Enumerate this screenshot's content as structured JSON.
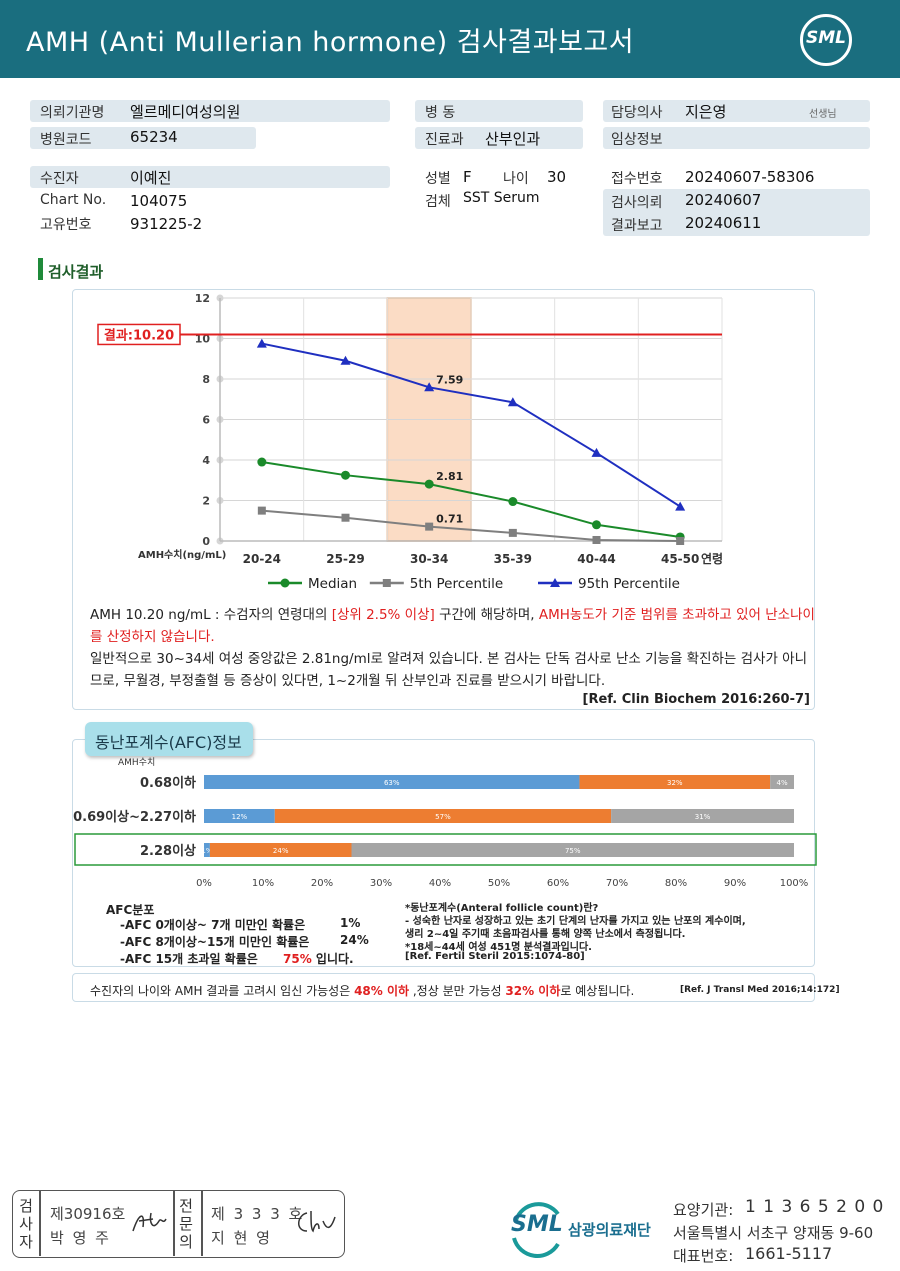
{
  "header": {
    "title": "AMH (Anti Mullerian hormone) 검사결과보고서",
    "logo": "SML"
  },
  "info": {
    "request_org_label": "의뢰기관명",
    "request_org": "엘르메디여성의원",
    "hospital_code_label": "병원코드",
    "hospital_code": "65234",
    "patient_label": "수진자",
    "patient": "이예진",
    "chart_label": "Chart No.",
    "chart_no": "104075",
    "unique_label": "고유번호",
    "unique_no": "931225-2",
    "ward_label": "병 동",
    "ward": "",
    "dept_label": "진료과",
    "dept": "산부인과",
    "sex_label": "성별",
    "sex": "F",
    "age_label": "나이",
    "age": "30",
    "specimen_label": "검체",
    "specimen": "SST Serum",
    "doctor_label": "담당의사",
    "doctor": "지은영",
    "doctor_suffix": "선생님",
    "clinical_label": "임상정보",
    "clinical": "",
    "receipt_label": "접수번호",
    "receipt_no": "20240607-58306",
    "request_date_label": "검사의뢰",
    "request_date": "20240607",
    "report_date_label": "결과보고",
    "report_date": "20240611"
  },
  "section_title": "검사결과",
  "chart_data": {
    "type": "line",
    "categories": [
      "20-24",
      "25-29",
      "30-34",
      "35-39",
      "40-44",
      "45-50"
    ],
    "xlabel": "연령",
    "ylabel": "AMH수치(ng/mL)",
    "ylim": [
      0,
      12
    ],
    "yticks": [
      "0",
      "2",
      "4",
      "6",
      "8",
      "10",
      "12"
    ],
    "grid": true,
    "legend_position": "bottom",
    "highlight_category": "30-34",
    "result_line": {
      "value": 10.2,
      "label": "결과:10.20",
      "color": "#e02020"
    },
    "series": [
      {
        "name": "Median",
        "values": [
          3.9,
          3.25,
          2.81,
          1.95,
          0.8,
          0.2
        ],
        "color": "#1a8a2a",
        "marker": "circle"
      },
      {
        "name": "5th Percentile",
        "values": [
          1.5,
          1.15,
          0.71,
          0.4,
          0.05,
          0.0
        ],
        "color": "#7f7f7f",
        "marker": "square"
      },
      {
        "name": "95th Percentile",
        "values": [
          9.75,
          8.9,
          7.59,
          6.85,
          4.35,
          1.7
        ],
        "color": "#1f2fc0",
        "marker": "triangle"
      }
    ],
    "data_labels": [
      {
        "series": 2,
        "index": 2,
        "text": "7.59"
      },
      {
        "series": 0,
        "index": 2,
        "text": "2.81"
      },
      {
        "series": 1,
        "index": 2,
        "text": "0.71"
      }
    ]
  },
  "interpretation": {
    "p1_a": "AMH  10.20 ng/mL : 수검자의 연령대의 ",
    "p1_b": "[상위 2.5% 이상]",
    "p1_c": " 구간에 해당하며, ",
    "p1_d": "AMH농도가 기준 범위를 초과하고 있어 난소나이를 산정하지 않습니다.",
    "p2": "일반적으로 30~34세 여성 중앙값은 2.81ng/ml로 알려져 있습니다. 본 검사는 단독 검사로 난소 기능을 확진하는 검사가 아니므로, 무월경, 부정출혈 등 증상이 있다면, 1~2개월 뒤 산부인과 진료를 받으시기 바랍니다.",
    "ref": "[Ref. Clin Biochem 2016:260-7]"
  },
  "afc": {
    "tab_title": "동난포계수(AFC)정보",
    "amh_axis_label": "AMH수치",
    "x_ticks": [
      "0%",
      "10%",
      "20%",
      "30%",
      "40%",
      "50%",
      "60%",
      "70%",
      "80%",
      "90%",
      "100%"
    ],
    "colors": [
      "#5b9bd5",
      "#ed7d31",
      "#a5a5a5"
    ],
    "rows": [
      {
        "label": "0.68이하",
        "values": [
          63,
          32,
          4
        ],
        "texts": [
          "63%",
          "32%",
          "4%"
        ],
        "highlight": false
      },
      {
        "label": "0.69이상~2.27이하",
        "values": [
          12,
          57,
          31
        ],
        "texts": [
          "12%",
          "57%",
          "31%"
        ],
        "highlight": false
      },
      {
        "label": "2.28이상",
        "values": [
          1,
          24,
          75
        ],
        "texts": [
          "1%",
          "24%",
          "75%"
        ],
        "highlight": true
      }
    ],
    "dist_title": "AFC분포",
    "dist_lines": [
      {
        "text": "-AFC  0개이상~ 7개 미만인 확률은",
        "value": "1%",
        "suffix": ""
      },
      {
        "text": "-AFC  8개이상~15개 미만인 확률은",
        "value": "24%",
        "suffix": ""
      },
      {
        "text": "-AFC  15개 초과일 확률은",
        "value": "75%",
        "suffix": " 입니다."
      }
    ],
    "notes": [
      "*동난포계수(Anteral follicle count)란?",
      "- 성숙한 난자로 성장하고 있는 초기 단계의 난자를 가지고 있는 난포의 계수이며,",
      "  생리 2~4일 주기때 초음파검사를 통해 양쪽 난소에서 측정됩니다.",
      "*18세~44세 여성 451명 분석결과입니다.",
      "[Ref. Fertil Steril 2015:1074-80]"
    ]
  },
  "pregnancy": {
    "a": "수진자의  나이와 AMH 결과를 고려시 임신 가능성은 ",
    "b": "48% 이하",
    "c": " ,정상 분만 가능성 ",
    "d": "32% 이하",
    "e": "로 예상됩니다.",
    "ref": "[Ref. J Transl Med 2016;14:172]"
  },
  "footer": {
    "tester_label": "검사자",
    "tester_license": "제30916호",
    "tester_name": "박 영 주",
    "specialist_label": "전문의",
    "specialist_license": "제 3 3 3 호",
    "specialist_name": "지 현 영",
    "org_logo": "SML",
    "org_name": "삼광의료재단",
    "org_code_label": "요양기관:",
    "org_code": "1 1 3 6 5 2 0 0",
    "address": "서울특별시 서초구 양재동 9-60",
    "phone_label": "대표번호:",
    "phone": "1661-5117"
  }
}
